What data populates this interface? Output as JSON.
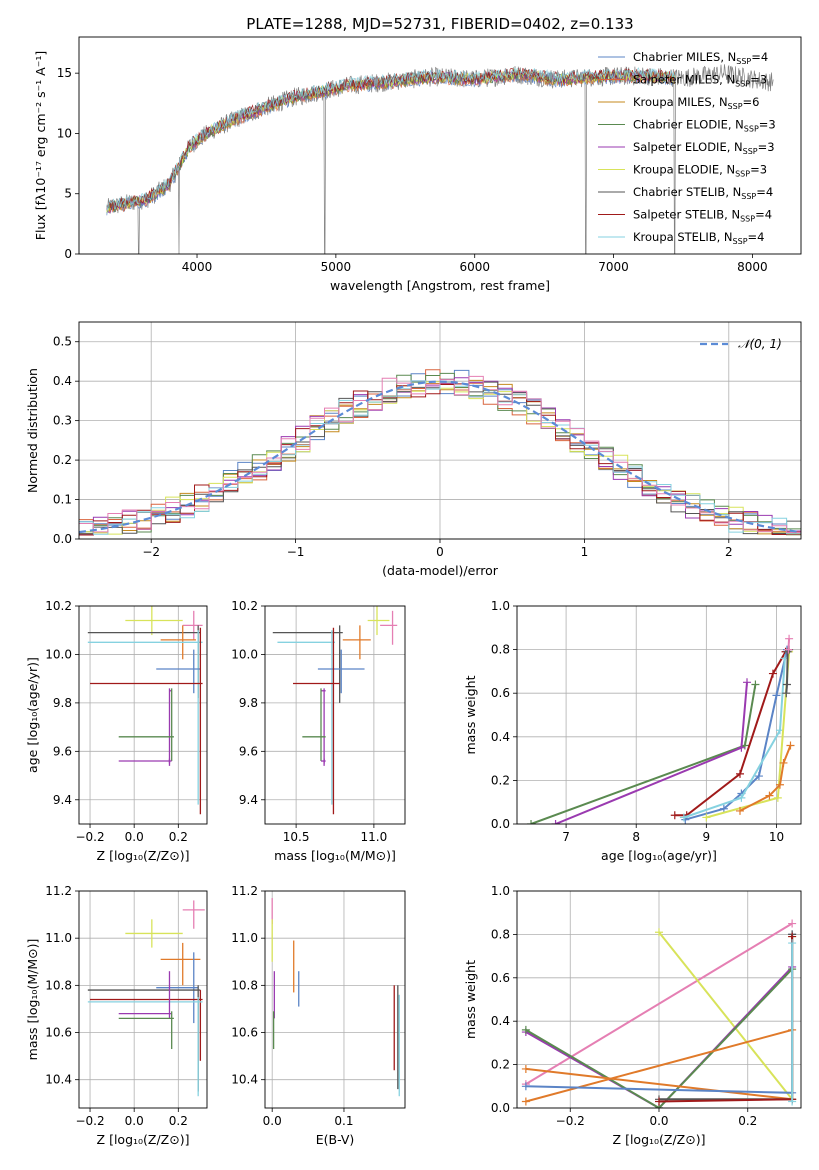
{
  "figure": {
    "title": "PLATE=1288, MJD=52731, FIBERID=0402, z=0.133"
  },
  "colors": {
    "chabrier_miles": "#5b84c6",
    "salpeter_miles": "#d9653f",
    "kroupa_miles": "#c58a1e",
    "chabrier_elodie": "#5a8a50",
    "salpeter_elodie": "#9a3ab0",
    "kroupa_elodie": "#d8e35a",
    "chabrier_stelib": "#555555",
    "salpeter_stelib": "#a01a1a",
    "kroupa_stelib": "#86d2e0",
    "normal": "#5b8bd6",
    "pink": "#e57fb3",
    "orange": "#e07a2a",
    "data_gray": "#808080"
  },
  "legend": [
    {
      "key": "chabrier_miles",
      "text": "Chabrier MILES, N",
      "sub": "SSP",
      "tail": "=4"
    },
    {
      "key": "salpeter_miles",
      "text": "Salpeter MILES, N",
      "sub": "SSP",
      "tail": "=3"
    },
    {
      "key": "kroupa_miles",
      "text": "Kroupa MILES, N",
      "sub": "SSP",
      "tail": "=6"
    },
    {
      "key": "chabrier_elodie",
      "text": "Chabrier ELODIE, N",
      "sub": "SSP",
      "tail": "=3"
    },
    {
      "key": "salpeter_elodie",
      "text": "Salpeter ELODIE, N",
      "sub": "SSP",
      "tail": "=3"
    },
    {
      "key": "kroupa_elodie",
      "text": "Kroupa ELODIE, N",
      "sub": "SSP",
      "tail": "=3"
    },
    {
      "key": "chabrier_stelib",
      "text": "Chabrier STELIB, N",
      "sub": "SSP",
      "tail": "=4"
    },
    {
      "key": "salpeter_stelib",
      "text": "Salpeter STELIB, N",
      "sub": "SSP",
      "tail": "=4"
    },
    {
      "key": "kroupa_stelib",
      "text": "Kroupa STELIB, N",
      "sub": "SSP",
      "tail": "=4"
    }
  ],
  "chart_data": [
    {
      "id": "spectrum",
      "type": "line",
      "xlabel": "wavelength [Angstrom, rest frame]",
      "ylabel": "Flux [fλ10⁻¹⁷ erg cm⁻² s⁻¹ A⁻¹]",
      "xlim": [
        3150,
        8350
      ],
      "ylim": [
        0,
        18
      ],
      "xticks": [
        4000,
        5000,
        6000,
        7000,
        8000
      ],
      "yticks": [
        0,
        5,
        10,
        15
      ],
      "grid": false,
      "legend_position": "right",
      "continuum": [
        [
          3350,
          3.8
        ],
        [
          3500,
          4.2
        ],
        [
          3650,
          4.6
        ],
        [
          3800,
          5.8
        ],
        [
          3950,
          9.0
        ],
        [
          4100,
          10.2
        ],
        [
          4300,
          11.3
        ],
        [
          4500,
          12.2
        ],
        [
          4700,
          13.0
        ],
        [
          4900,
          13.5
        ],
        [
          5100,
          14.0
        ],
        [
          5400,
          14.3
        ],
        [
          5700,
          14.7
        ],
        [
          6000,
          14.5
        ],
        [
          6300,
          14.9
        ],
        [
          6600,
          14.5
        ],
        [
          6900,
          14.7
        ],
        [
          7200,
          14.8
        ],
        [
          7500,
          14.6
        ],
        [
          7800,
          15.0
        ],
        [
          8100,
          14.3
        ]
      ],
      "model_extent": [
        3350,
        7450
      ],
      "absorption_spikes": [
        [
          3580,
          0
        ],
        [
          3870,
          0
        ],
        [
          4920,
          0
        ],
        [
          6800,
          0
        ],
        [
          7440,
          0
        ]
      ]
    },
    {
      "id": "residuals",
      "type": "histogram",
      "xlabel": "(data-model)/error",
      "ylabel": "Normed distribution",
      "xlim": [
        -2.5,
        2.5
      ],
      "ylim": [
        0,
        0.55
      ],
      "xticks": [
        -2,
        -1,
        0,
        1,
        2
      ],
      "yticks": [
        0.0,
        0.1,
        0.2,
        0.3,
        0.4,
        0.5
      ],
      "grid": true,
      "bin_width": 0.1,
      "legend_position": "top-right",
      "series_name": "𝒩(0, 1)"
    },
    {
      "id": "age_vs_Z",
      "type": "errorbar",
      "xlabel": "Z [log₁₀(Z/Z⊙)]",
      "ylabel": "age  [log₁₀(age/yr)]",
      "xlim": [
        -0.25,
        0.33
      ],
      "ylim": [
        9.3,
        10.2
      ],
      "xticks": [
        -0.2,
        0.0,
        0.2
      ],
      "yticks": [
        9.4,
        9.6,
        9.8,
        10.0,
        10.2
      ],
      "grid": true,
      "points": [
        {
          "key": "kroupa_elodie",
          "x": 0.08,
          "y": 10.14,
          "xlo": -0.04,
          "xhi": 0.22,
          "ylo": 10.08,
          "yhi": 10.2
        },
        {
          "key": "pink",
          "x": 0.27,
          "y": 10.12,
          "xlo": 0.22,
          "xhi": 0.31,
          "ylo": 10.06,
          "yhi": 10.18
        },
        {
          "key": "chabrier_stelib",
          "x": 0.29,
          "y": 10.09,
          "xlo": -0.21,
          "xhi": 0.3,
          "ylo": 9.82,
          "yhi": 10.12
        },
        {
          "key": "orange",
          "x": 0.22,
          "y": 10.06,
          "xlo": 0.12,
          "xhi": 0.28,
          "ylo": 9.98,
          "yhi": 10.12
        },
        {
          "key": "kroupa_stelib",
          "x": 0.29,
          "y": 10.05,
          "xlo": -0.21,
          "xhi": 0.31,
          "ylo": 9.38,
          "yhi": 10.1
        },
        {
          "key": "chabrier_miles",
          "x": 0.27,
          "y": 9.94,
          "xlo": 0.1,
          "xhi": 0.3,
          "ylo": 9.84,
          "yhi": 10.02
        },
        {
          "key": "salpeter_stelib",
          "x": 0.3,
          "y": 9.88,
          "xlo": -0.2,
          "xhi": 0.31,
          "ylo": 9.34,
          "yhi": 10.11
        },
        {
          "key": "salpeter_elodie",
          "x": 0.16,
          "y": 9.85,
          "xlo": 0.16,
          "xhi": 0.17,
          "ylo": 9.54,
          "yhi": 9.86
        },
        {
          "key": "chabrier_elodie",
          "x": 0.17,
          "y": 9.66,
          "xlo": -0.07,
          "xhi": 0.18,
          "ylo": 9.56,
          "yhi": 9.86
        },
        {
          "key": "salpeter_elodie",
          "x": 0.16,
          "y": 9.56,
          "xlo": -0.07,
          "xhi": 0.17,
          "ylo": 9.55,
          "yhi": 9.57
        }
      ]
    },
    {
      "id": "age_vs_mass",
      "type": "errorbar",
      "xlabel": "mass [log₁₀(M/M⊙)]",
      "ylabel": "",
      "xlim": [
        10.3,
        11.2
      ],
      "ylim": [
        9.3,
        10.2
      ],
      "xticks": [
        10.5,
        11.0
      ],
      "yticks": [
        9.4,
        9.6,
        9.8,
        10.0,
        10.2
      ],
      "grid": true,
      "points": [
        {
          "key": "kroupa_elodie",
          "x": 11.02,
          "y": 10.14,
          "xlo": 10.96,
          "xhi": 11.1,
          "ylo": 10.08,
          "yhi": 10.2
        },
        {
          "key": "pink",
          "x": 11.12,
          "y": 10.12,
          "xlo": 11.04,
          "xhi": 11.15,
          "ylo": 10.04,
          "yhi": 10.18
        },
        {
          "key": "chabrier_stelib",
          "x": 10.78,
          "y": 10.09,
          "xlo": 10.35,
          "xhi": 10.8,
          "ylo": 9.8,
          "yhi": 10.12
        },
        {
          "key": "orange",
          "x": 10.91,
          "y": 10.06,
          "xlo": 10.8,
          "xhi": 10.98,
          "ylo": 9.98,
          "yhi": 10.12
        },
        {
          "key": "kroupa_stelib",
          "x": 10.73,
          "y": 10.05,
          "xlo": 10.38,
          "xhi": 10.75,
          "ylo": 9.38,
          "yhi": 10.1
        },
        {
          "key": "chabrier_miles",
          "x": 10.79,
          "y": 9.94,
          "xlo": 10.64,
          "xhi": 10.94,
          "ylo": 9.84,
          "yhi": 10.02
        },
        {
          "key": "salpeter_stelib",
          "x": 10.74,
          "y": 9.88,
          "xlo": 10.48,
          "xhi": 10.78,
          "ylo": 9.34,
          "yhi": 10.11
        },
        {
          "key": "salpeter_elodie",
          "x": 10.68,
          "y": 9.85,
          "xlo": 10.66,
          "xhi": 10.69,
          "ylo": 9.54,
          "yhi": 9.86
        },
        {
          "key": "chabrier_elodie",
          "x": 10.66,
          "y": 9.66,
          "xlo": 10.54,
          "xhi": 10.69,
          "ylo": 9.56,
          "yhi": 9.86
        },
        {
          "key": "salpeter_elodie",
          "x": 10.68,
          "y": 9.56,
          "xlo": 10.66,
          "xhi": 10.69,
          "ylo": 9.55,
          "yhi": 9.57
        }
      ]
    },
    {
      "id": "mass_weight_vs_age",
      "type": "line",
      "xlabel": "age  [log₁₀(age/yr)]",
      "ylabel": "mass weight",
      "xlim": [
        6.3,
        10.35
      ],
      "ylim": [
        0,
        1
      ],
      "xticks": [
        7,
        8,
        9,
        10
      ],
      "yticks": [
        0.0,
        0.2,
        0.4,
        0.6,
        0.8,
        1.0
      ],
      "grid": true,
      "series": [
        {
          "key": "chabrier_elodie",
          "x": [
            6.5,
            9.55,
            9.7
          ],
          "y": [
            0.0,
            0.36,
            0.64
          ]
        },
        {
          "key": "salpeter_elodie",
          "x": [
            6.85,
            9.5,
            9.58
          ],
          "y": [
            0.0,
            0.35,
            0.65
          ]
        },
        {
          "key": "salpeter_stelib",
          "x": [
            8.55,
            8.72,
            9.48,
            9.95,
            10.13
          ],
          "y": [
            0.04,
            0.04,
            0.23,
            0.69,
            0.79
          ]
        },
        {
          "key": "chabrier_miles",
          "x": [
            8.7,
            9.25,
            9.5,
            9.75,
            10.0,
            10.15
          ],
          "y": [
            0.02,
            0.07,
            0.14,
            0.22,
            0.59,
            0.8
          ]
        },
        {
          "key": "kroupa_stelib",
          "x": [
            8.68,
            9.5,
            10.05,
            10.12
          ],
          "y": [
            0.03,
            0.12,
            0.43,
            0.76
          ]
        },
        {
          "key": "kroupa_elodie",
          "x": [
            9.0,
            10.02,
            10.18
          ],
          "y": [
            0.03,
            0.12,
            0.79
          ]
        },
        {
          "key": "orange",
          "x": [
            9.48,
            9.9,
            10.05,
            10.1,
            10.2
          ],
          "y": [
            0.06,
            0.13,
            0.18,
            0.28,
            0.36
          ]
        },
        {
          "key": "chabrier_stelib",
          "x": [
            10.14,
            10.15,
            10.16,
            10.18
          ],
          "y": [
            0.6,
            0.64,
            0.79,
            0.8
          ]
        },
        {
          "key": "pink",
          "x": [
            10.17,
            10.18
          ],
          "y": [
            0.8,
            0.85
          ]
        }
      ]
    },
    {
      "id": "mass_vs_Z",
      "type": "errorbar",
      "xlabel": "Z [log₁₀(Z/Z⊙)]",
      "ylabel": "mass [log₁₀(M/M⊙)]",
      "xlim": [
        -0.25,
        0.33
      ],
      "ylim": [
        10.28,
        11.2
      ],
      "xticks": [
        -0.2,
        0.0,
        0.2
      ],
      "yticks": [
        10.4,
        10.6,
        10.8,
        11.0,
        11.2
      ],
      "grid": true,
      "points": [
        {
          "key": "pink",
          "x": 0.27,
          "y": 11.12,
          "xlo": 0.22,
          "xhi": 0.32,
          "ylo": 11.04,
          "yhi": 11.16
        },
        {
          "key": "kroupa_elodie",
          "x": 0.08,
          "y": 11.02,
          "xlo": -0.04,
          "xhi": 0.22,
          "ylo": 10.96,
          "yhi": 11.08
        },
        {
          "key": "orange",
          "x": 0.22,
          "y": 10.91,
          "xlo": 0.12,
          "xhi": 0.3,
          "ylo": 10.8,
          "yhi": 10.98
        },
        {
          "key": "chabrier_miles",
          "x": 0.27,
          "y": 10.79,
          "xlo": 0.1,
          "xhi": 0.29,
          "ylo": 10.64,
          "yhi": 10.94
        },
        {
          "key": "chabrier_stelib",
          "x": 0.29,
          "y": 10.78,
          "xlo": -0.21,
          "xhi": 0.3,
          "ylo": 10.35,
          "yhi": 10.8
        },
        {
          "key": "salpeter_stelib",
          "x": 0.3,
          "y": 10.74,
          "xlo": -0.2,
          "xhi": 0.31,
          "ylo": 10.48,
          "yhi": 10.78
        },
        {
          "key": "kroupa_stelib",
          "x": 0.29,
          "y": 10.73,
          "xlo": -0.21,
          "xhi": 0.31,
          "ylo": 10.33,
          "yhi": 10.75
        },
        {
          "key": "salpeter_elodie",
          "x": 0.16,
          "y": 10.68,
          "xlo": -0.07,
          "xhi": 0.17,
          "ylo": 10.66,
          "yhi": 10.86
        },
        {
          "key": "chabrier_elodie",
          "x": 0.17,
          "y": 10.66,
          "xlo": -0.07,
          "xhi": 0.18,
          "ylo": 10.53,
          "yhi": 10.69
        }
      ]
    },
    {
      "id": "mass_vs_EBV",
      "type": "errorbar",
      "xlabel": "E(B-V)",
      "ylabel": "",
      "xlim": [
        -0.01,
        0.185
      ],
      "ylim": [
        10.28,
        11.2
      ],
      "xticks": [
        0.0,
        0.1
      ],
      "yticks": [
        10.4,
        10.6,
        10.8,
        11.0,
        11.2
      ],
      "grid": true,
      "points": [
        {
          "key": "pink",
          "x": 0.0,
          "y": 11.12,
          "xlo": 0.0,
          "xhi": 0.0,
          "ylo": 11.06,
          "yhi": 11.17
        },
        {
          "key": "kroupa_elodie",
          "x": 0.0,
          "y": 11.02,
          "xlo": 0.0,
          "xhi": 0.0,
          "ylo": 10.9,
          "yhi": 11.08
        },
        {
          "key": "orange",
          "x": 0.03,
          "y": 10.91,
          "xlo": 0.03,
          "xhi": 0.03,
          "ylo": 10.77,
          "yhi": 10.99
        },
        {
          "key": "chabrier_miles",
          "x": 0.037,
          "y": 10.79,
          "xlo": 0.037,
          "xhi": 0.037,
          "ylo": 10.71,
          "yhi": 10.86
        },
        {
          "key": "salpeter_elodie",
          "x": 0.003,
          "y": 10.76,
          "xlo": 0.003,
          "xhi": 0.003,
          "ylo": 10.66,
          "yhi": 10.86
        },
        {
          "key": "chabrier_elodie",
          "x": 0.002,
          "y": 10.6,
          "xlo": 0.002,
          "xhi": 0.002,
          "ylo": 10.53,
          "yhi": 10.69
        },
        {
          "key": "salpeter_stelib",
          "x": 0.17,
          "y": 10.62,
          "xlo": 0.17,
          "xhi": 0.17,
          "ylo": 10.44,
          "yhi": 10.8
        },
        {
          "key": "chabrier_stelib",
          "x": 0.175,
          "y": 10.58,
          "xlo": 0.175,
          "xhi": 0.175,
          "ylo": 10.36,
          "yhi": 10.8
        },
        {
          "key": "kroupa_stelib",
          "x": 0.177,
          "y": 10.55,
          "xlo": 0.177,
          "xhi": 0.177,
          "ylo": 10.33,
          "yhi": 10.76
        }
      ]
    },
    {
      "id": "mass_weight_vs_Z",
      "type": "line",
      "xlabel": "Z [log₁₀(Z/Z⊙)]",
      "ylabel": "mass weight",
      "xlim": [
        -0.32,
        0.32
      ],
      "ylim": [
        0,
        1
      ],
      "xticks": [
        -0.2,
        0.0,
        0.2
      ],
      "yticks": [
        0.0,
        0.2,
        0.4,
        0.6,
        0.8,
        1.0
      ],
      "grid": true,
      "series": [
        {
          "key": "pink",
          "x": [
            -0.3,
            0.3
          ],
          "y": [
            0.11,
            0.85
          ]
        },
        {
          "key": "kroupa_elodie",
          "x": [
            0.0,
            0.3,
            0.3
          ],
          "y": [
            0.81,
            0.04,
            0.79
          ]
        },
        {
          "key": "salpeter_elodie",
          "x": [
            -0.3,
            0.0,
            0.3
          ],
          "y": [
            0.35,
            0.0,
            0.65
          ]
        },
        {
          "key": "chabrier_elodie",
          "x": [
            -0.3,
            0.0,
            0.3
          ],
          "y": [
            0.36,
            0.0,
            0.64
          ]
        },
        {
          "key": "orange",
          "x": [
            -0.3,
            0.3,
            0.3,
            -0.3
          ],
          "y": [
            0.18,
            0.04,
            0.36,
            0.03
          ]
        },
        {
          "key": "chabrier_miles",
          "x": [
            -0.3,
            0.3,
            0.3
          ],
          "y": [
            0.1,
            0.07,
            0.8
          ]
        },
        {
          "key": "chabrier_stelib",
          "x": [
            0.0,
            0.3,
            0.3
          ],
          "y": [
            0.04,
            0.04,
            0.8
          ]
        },
        {
          "key": "salpeter_stelib",
          "x": [
            0.0,
            0.3,
            0.3
          ],
          "y": [
            0.03,
            0.04,
            0.79
          ]
        },
        {
          "key": "kroupa_stelib",
          "x": [
            0.3,
            0.3
          ],
          "y": [
            0.03,
            0.76
          ]
        }
      ]
    }
  ]
}
